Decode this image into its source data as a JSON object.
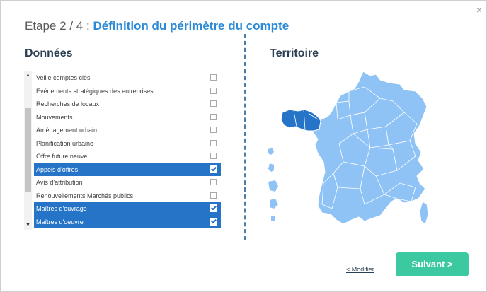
{
  "header": {
    "step": "Etape 2 / 4",
    "separator": ":",
    "title": "Définition du périmètre du compte"
  },
  "close_icon": "×",
  "donnees": {
    "heading": "Données",
    "scroll_up": "▲",
    "scroll_down": "▼",
    "items": [
      {
        "label": "Veille comptes clés",
        "checked": false
      },
      {
        "label": "Evénements stratégiques des entreprises",
        "checked": false
      },
      {
        "label": "Recherches de locaux",
        "checked": false
      },
      {
        "label": "Mouvements",
        "checked": false
      },
      {
        "label": "Aménagement urbain",
        "checked": false
      },
      {
        "label": "Planification urbaine",
        "checked": false
      },
      {
        "label": "Offre future neuve",
        "checked": false
      },
      {
        "label": "Appels d'offres",
        "checked": true
      },
      {
        "label": "Avis d'attribution",
        "checked": false
      },
      {
        "label": "Renouvellements Marchés publics",
        "checked": false
      },
      {
        "label": "Maîtres d'ouvrage",
        "checked": true
      },
      {
        "label": "Maîtres d'oeuvre",
        "checked": true
      }
    ]
  },
  "territoire": {
    "heading": "Territoire",
    "colors": {
      "default": "#8fc3f5",
      "selected": "#2674c8",
      "border": "#ffffff"
    },
    "selected_region": "Bretagne"
  },
  "footer": {
    "modify_label": "< Modifier",
    "next_label": "Suivant >"
  },
  "colors": {
    "accent": "#2b8ad8",
    "selected_row": "#2674c8",
    "primary_button": "#3cc8a0"
  }
}
